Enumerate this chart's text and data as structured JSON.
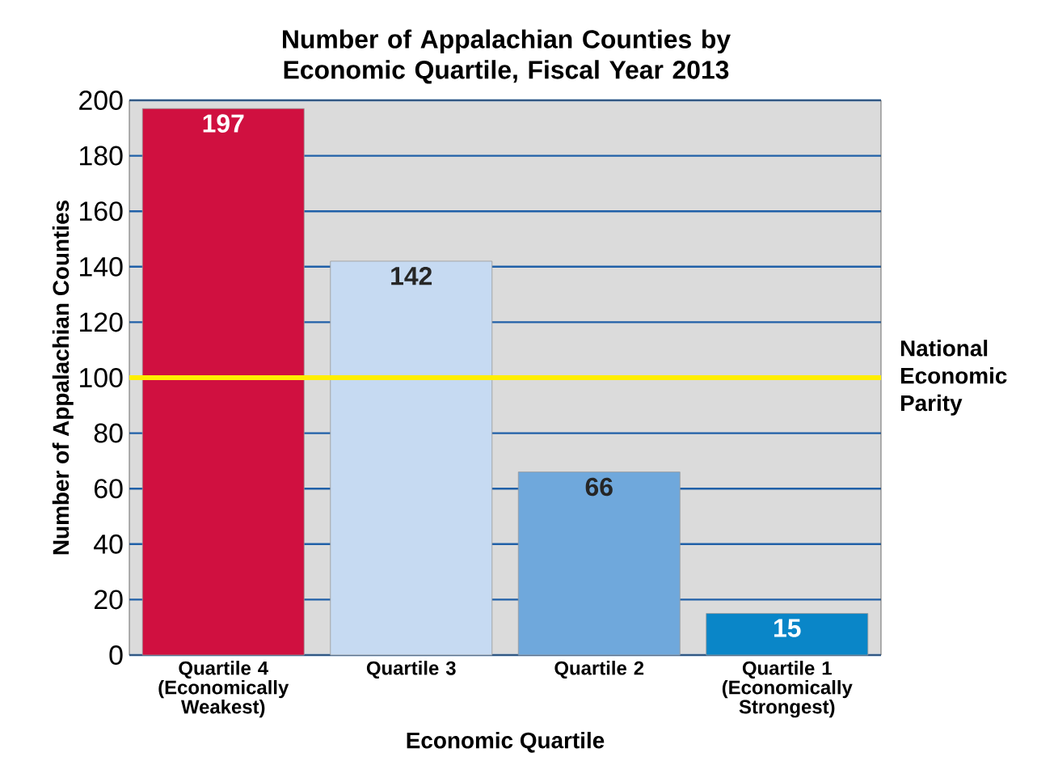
{
  "chart_data": {
    "type": "bar",
    "title": "Number of Appalachian Counties by Economic Quartile, Fiscal Year 2013",
    "xlabel": "Economic Quartile",
    "ylabel": "Number of Appalachian Counties",
    "categories": [
      "Quartile 4 (Economically Weakest)",
      "Quartile 3",
      "Quartile 2",
      "Quartile 1 (Economically Strongest)"
    ],
    "values": [
      197,
      142,
      66,
      15
    ],
    "colors": [
      "#d01040",
      "#c6daf2",
      "#6fa8dc",
      "#0a86c8"
    ],
    "ylim": [
      0,
      200
    ],
    "yticks": [
      0,
      20,
      40,
      60,
      80,
      100,
      120,
      140,
      160,
      180,
      200
    ],
    "grid": "y",
    "data_labels": true,
    "ref_lines": [
      {
        "axis": "y",
        "value": 100,
        "label": "National Economic Parity",
        "color": "#ffee00"
      }
    ]
  }
}
